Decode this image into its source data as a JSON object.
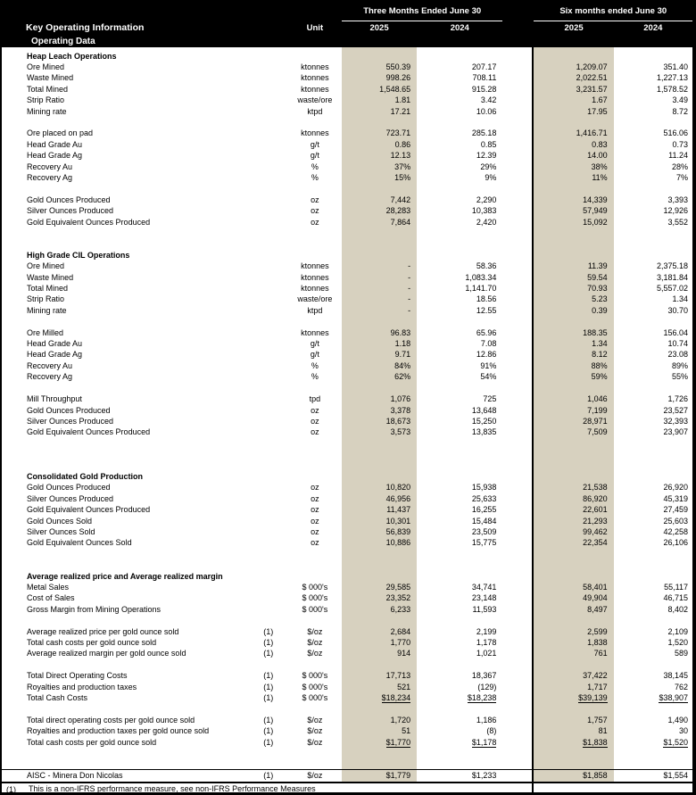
{
  "header": {
    "title": "Key Operating Information",
    "subtitle": "Operating Data",
    "unit_label": "Unit",
    "col_groups": [
      {
        "label": "Three Months Ended June 30",
        "years": [
          "2025",
          "2024"
        ]
      },
      {
        "label": "Six months ended June 30",
        "years": [
          "2025",
          "2024"
        ]
      }
    ]
  },
  "colors": {
    "header_bg": "#000000",
    "header_text": "#ffffff",
    "highlight_col": "#d7d1bf",
    "body_bg": "#ffffff"
  },
  "table": {
    "rows": [
      {
        "type": "section",
        "label": "Heap Leach Operations"
      },
      {
        "type": "data",
        "label": "Ore Mined",
        "unit": "ktonnes",
        "values": [
          "550.39",
          "207.17",
          "1,209.07",
          "351.40"
        ]
      },
      {
        "type": "data",
        "label": "Waste Mined",
        "unit": "ktonnes",
        "values": [
          "998.26",
          "708.11",
          "2,022.51",
          "1,227.13"
        ]
      },
      {
        "type": "data",
        "label": "Total Mined",
        "unit": "ktonnes",
        "values": [
          "1,548.65",
          "915.28",
          "3,231.57",
          "1,578.52"
        ]
      },
      {
        "type": "data",
        "label": "Strip Ratio",
        "unit": "waste/ore",
        "values": [
          "1.81",
          "3.42",
          "1.67",
          "3.49"
        ]
      },
      {
        "type": "data",
        "label": "Mining rate",
        "unit": "ktpd",
        "values": [
          "17.21",
          "10.06",
          "17.95",
          "8.72"
        ]
      },
      {
        "type": "blank"
      },
      {
        "type": "data",
        "label": "Ore placed on pad",
        "unit": "ktonnes",
        "values": [
          "723.71",
          "285.18",
          "1,416.71",
          "516.06"
        ]
      },
      {
        "type": "data",
        "label": "Head Grade Au",
        "unit": "g/t",
        "values": [
          "0.86",
          "0.85",
          "0.83",
          "0.73"
        ]
      },
      {
        "type": "data",
        "label": "Head Grade Ag",
        "unit": "g/t",
        "values": [
          "12.13",
          "12.39",
          "14.00",
          "11.24"
        ]
      },
      {
        "type": "data",
        "label": "Recovery Au",
        "unit": "%",
        "values": [
          "37%",
          "29%",
          "38%",
          "28%"
        ]
      },
      {
        "type": "data",
        "label": "Recovery Ag",
        "unit": "%",
        "values": [
          "15%",
          "9%",
          "11%",
          "7%"
        ]
      },
      {
        "type": "blank"
      },
      {
        "type": "data",
        "label": "Gold Ounces Produced",
        "unit": "oz",
        "values": [
          "7,442",
          "2,290",
          "14,339",
          "3,393"
        ]
      },
      {
        "type": "data",
        "label": "Silver Ounces Produced",
        "unit": "oz",
        "values": [
          "28,283",
          "10,383",
          "57,949",
          "12,926"
        ]
      },
      {
        "type": "data",
        "label": "Gold Equivalent Ounces Produced",
        "unit": "oz",
        "values": [
          "7,864",
          "2,420",
          "15,092",
          "3,552"
        ]
      },
      {
        "type": "blank"
      },
      {
        "type": "blank"
      },
      {
        "type": "section",
        "label": "High Grade CIL Operations"
      },
      {
        "type": "data",
        "label": "Ore Mined",
        "unit": "ktonnes",
        "values": [
          "-",
          "58.36",
          "11.39",
          "2,375.18"
        ]
      },
      {
        "type": "data",
        "label": "Waste Mined",
        "unit": "ktonnes",
        "values": [
          "-",
          "1,083.34",
          "59.54",
          "3,181.84"
        ]
      },
      {
        "type": "data",
        "label": "Total Mined",
        "unit": "ktonnes",
        "values": [
          "-",
          "1,141.70",
          "70.93",
          "5,557.02"
        ]
      },
      {
        "type": "data",
        "label": "Strip Ratio",
        "unit": "waste/ore",
        "values": [
          "-",
          "18.56",
          "5.23",
          "1.34"
        ]
      },
      {
        "type": "data",
        "label": "Mining rate",
        "unit": "ktpd",
        "values": [
          "-",
          "12.55",
          "0.39",
          "30.70"
        ]
      },
      {
        "type": "blank"
      },
      {
        "type": "data",
        "label": "Ore Milled",
        "unit": "ktonnes",
        "values": [
          "96.83",
          "65.96",
          "188.35",
          "156.04"
        ]
      },
      {
        "type": "data",
        "label": "Head Grade Au",
        "unit": "g/t",
        "values": [
          "1.18",
          "7.08",
          "1.34",
          "10.74"
        ]
      },
      {
        "type": "data",
        "label": "Head Grade Ag",
        "unit": "g/t",
        "values": [
          "9.71",
          "12.86",
          "8.12",
          "23.08"
        ]
      },
      {
        "type": "data",
        "label": "Recovery Au",
        "unit": "%",
        "values": [
          "84%",
          "91%",
          "88%",
          "89%"
        ]
      },
      {
        "type": "data",
        "label": "Recovery Ag",
        "unit": "%",
        "values": [
          "62%",
          "54%",
          "59%",
          "55%"
        ]
      },
      {
        "type": "blank"
      },
      {
        "type": "data",
        "label": "Mill Throughput",
        "unit": "tpd",
        "values": [
          "1,076",
          "725",
          "1,046",
          "1,726"
        ]
      },
      {
        "type": "data",
        "label": "Gold Ounces Produced",
        "unit": "oz",
        "values": [
          "3,378",
          "13,648",
          "7,199",
          "23,527"
        ]
      },
      {
        "type": "data",
        "label": "Silver Ounces Produced",
        "unit": "oz",
        "values": [
          "18,673",
          "15,250",
          "28,971",
          "32,393"
        ]
      },
      {
        "type": "data",
        "label": "Gold Equivalent Ounces Produced",
        "unit": "oz",
        "values": [
          "3,573",
          "13,835",
          "7,509",
          "23,907"
        ]
      },
      {
        "type": "blank"
      },
      {
        "type": "blank"
      },
      {
        "type": "blank"
      },
      {
        "type": "section",
        "label": "Consolidated Gold Production"
      },
      {
        "type": "data",
        "label": "Gold Ounces Produced",
        "unit": "oz",
        "values": [
          "10,820",
          "15,938",
          "21,538",
          "26,920"
        ]
      },
      {
        "type": "data",
        "label": "Silver Ounces Produced",
        "unit": "oz",
        "values": [
          "46,956",
          "25,633",
          "86,920",
          "45,319"
        ]
      },
      {
        "type": "data",
        "label": "Gold Equivalent Ounces Produced",
        "unit": "oz",
        "values": [
          "11,437",
          "16,255",
          "22,601",
          "27,459"
        ]
      },
      {
        "type": "data",
        "label": "Gold Ounces Sold",
        "unit": "oz",
        "values": [
          "10,301",
          "15,484",
          "21,293",
          "25,603"
        ]
      },
      {
        "type": "data",
        "label": "Silver Ounces Sold",
        "unit": "oz",
        "values": [
          "56,839",
          "23,509",
          "99,462",
          "42,258"
        ]
      },
      {
        "type": "data",
        "label": "Gold Equivalent Ounces Sold",
        "unit": "oz",
        "values": [
          "10,886",
          "15,775",
          "22,354",
          "26,106"
        ]
      },
      {
        "type": "blank"
      },
      {
        "type": "blank"
      },
      {
        "type": "section",
        "label": "Average realized price and Average realized margin"
      },
      {
        "type": "data",
        "label": "Metal Sales",
        "unit": "$ 000's",
        "values": [
          "29,585",
          "34,741",
          "58,401",
          "55,117"
        ]
      },
      {
        "type": "data",
        "label": "Cost of Sales",
        "unit": "$ 000's",
        "values": [
          "23,352",
          "23,148",
          "49,904",
          "46,715"
        ]
      },
      {
        "type": "data",
        "label": "Gross Margin from Mining Operations",
        "unit": "$ 000's",
        "values": [
          "6,233",
          "11,593",
          "8,497",
          "8,402"
        ]
      },
      {
        "type": "blank"
      },
      {
        "type": "data",
        "label": "Average realized price per gold ounce sold",
        "fn": "(1)",
        "unit": "$/oz",
        "values": [
          "2,684",
          "2,199",
          "2,599",
          "2,109"
        ]
      },
      {
        "type": "data",
        "label": "Total cash costs per gold ounce sold",
        "fn": "(1)",
        "unit": "$/oz",
        "values": [
          "1,770",
          "1,178",
          "1,838",
          "1,520"
        ]
      },
      {
        "type": "data",
        "label": "Average realized margin per gold ounce sold",
        "fn": "(1)",
        "unit": "$/oz",
        "values": [
          "914",
          "1,021",
          "761",
          "589"
        ]
      },
      {
        "type": "blank"
      },
      {
        "type": "data",
        "label": "Total Direct Operating Costs",
        "fn": "(1)",
        "unit": "$ 000's",
        "values": [
          "17,713",
          "18,367",
          "37,422",
          "38,145"
        ]
      },
      {
        "type": "data",
        "label": "Royalties and production taxes",
        "fn": "(1)",
        "unit": "$ 000's",
        "values": [
          "521",
          "(129)",
          "1,717",
          "762"
        ]
      },
      {
        "type": "data",
        "label": "Total Cash Costs",
        "fn": "(1)",
        "unit": "$ 000's",
        "values": [
          "$18,234",
          "$18,238",
          "$39,139",
          "$38,907"
        ],
        "underline": true
      },
      {
        "type": "blank"
      },
      {
        "type": "data",
        "label": "Total direct operating costs per gold ounce sold",
        "fn": "(1)",
        "unit": "$/oz",
        "values": [
          "1,720",
          "1,186",
          "1,757",
          "1,490"
        ]
      },
      {
        "type": "data",
        "label": "Royalties and production taxes per gold ounce sold",
        "fn": "(1)",
        "unit": "$/oz",
        "values": [
          "51",
          "(8)",
          "81",
          "30"
        ]
      },
      {
        "type": "data",
        "label": "Total cash costs per gold ounce sold",
        "fn": "(1)",
        "unit": "$/oz",
        "values": [
          "$1,770",
          "$1,178",
          "$1,838",
          "$1,520"
        ],
        "underline": true
      },
      {
        "type": "blank"
      },
      {
        "type": "blank"
      },
      {
        "type": "data",
        "label": "AISC - Minera Don Nicolas",
        "fn": "(1)",
        "unit": "$/oz",
        "values": [
          "$1,779",
          "$1,233",
          "$1,858",
          "$1,554"
        ],
        "topline": true
      }
    ]
  },
  "footnote": {
    "marker": "(1)",
    "text": "This is a non-IFRS performance measure, see non-IFRS Performance Measures"
  }
}
